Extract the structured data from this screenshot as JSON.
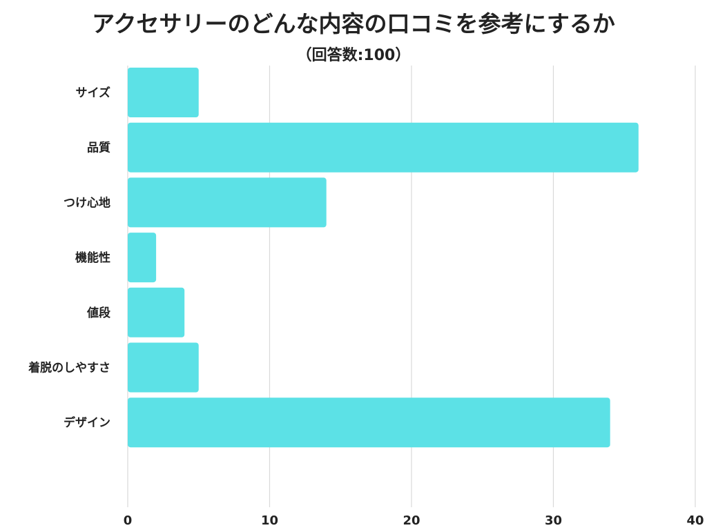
{
  "chart_data": {
    "type": "bar",
    "orientation": "horizontal",
    "title": "アクセサリーのどんな内容の口コミを参考にするか",
    "subtitle": "（回答数:100）",
    "categories": [
      "サイズ",
      "品質",
      "つけ心地",
      "機能性",
      "値段",
      "着脱のしやすさ",
      "デザイン"
    ],
    "values": [
      5,
      36,
      14,
      2,
      4,
      5,
      34
    ],
    "xlim": [
      0,
      40
    ],
    "xticks": [
      0,
      10,
      20,
      30,
      40
    ],
    "grid": true,
    "bar_color": "#5ce1e6",
    "xlabel": "",
    "ylabel": ""
  }
}
